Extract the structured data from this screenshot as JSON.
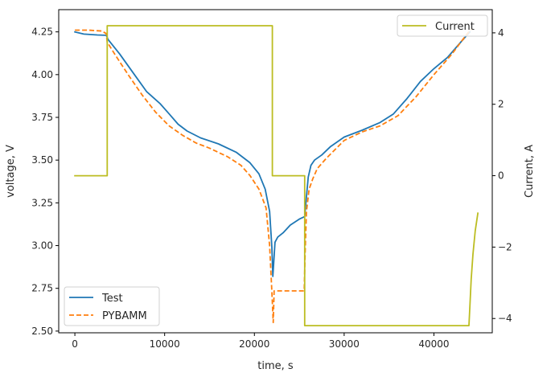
{
  "chart_data": {
    "type": "line",
    "title": "",
    "xlabel": "time, s",
    "ylabel_left": "voltage, V",
    "ylabel_right": "Current, A",
    "xlim": [
      -1800,
      46500
    ],
    "ylim_left": [
      2.49,
      4.38
    ],
    "ylim_right": [
      -4.4,
      4.65
    ],
    "x_ticks": [
      0,
      10000,
      20000,
      30000,
      40000
    ],
    "x_tick_labels": [
      "0",
      "10000",
      "20000",
      "30000",
      "40000"
    ],
    "y_left_ticks": [
      2.5,
      2.75,
      3.0,
      3.25,
      3.5,
      3.75,
      4.0,
      4.25
    ],
    "y_left_tick_labels": [
      "2.50",
      "2.75",
      "3.00",
      "3.25",
      "3.50",
      "3.75",
      "4.00",
      "4.25"
    ],
    "y_right_ticks": [
      -4,
      -2,
      0,
      2,
      4
    ],
    "y_right_tick_labels": [
      "−4",
      "−2",
      "0",
      "2",
      "4"
    ],
    "grid": false,
    "legend_left": {
      "placement": "lower-left",
      "entries": [
        "Test",
        "PYBAMM"
      ]
    },
    "legend_right": {
      "placement": "upper-right",
      "entries": [
        "Current"
      ]
    },
    "series": [
      {
        "name": "Test",
        "axis": "left",
        "color": "#1f77b4",
        "dash": "solid",
        "x": [
          0,
          1000,
          2500,
          3500,
          3700,
          5000,
          6500,
          8000,
          9500,
          10500,
          11500,
          12500,
          14000,
          16000,
          18000,
          19500,
          20500,
          21200,
          21700,
          21950,
          22050,
          22150,
          22300,
          22600,
          23200,
          24000,
          25000,
          25600,
          25700,
          26000,
          26300,
          26700,
          27500,
          28500,
          30000,
          32000,
          34000,
          35500,
          37000,
          38500,
          40000,
          41500,
          43000,
          44000
        ],
        "y": [
          4.25,
          4.237,
          4.232,
          4.23,
          4.205,
          4.12,
          4.01,
          3.9,
          3.83,
          3.77,
          3.71,
          3.67,
          3.63,
          3.595,
          3.545,
          3.485,
          3.42,
          3.33,
          3.2,
          2.99,
          2.82,
          2.9,
          3.02,
          3.05,
          3.075,
          3.12,
          3.155,
          3.17,
          3.23,
          3.4,
          3.47,
          3.5,
          3.53,
          3.58,
          3.635,
          3.675,
          3.72,
          3.77,
          3.86,
          3.96,
          4.035,
          4.1,
          4.19,
          4.25
        ]
      },
      {
        "name": "PYBAMM",
        "axis": "left",
        "color": "#ff7f0e",
        "dash": "dashed",
        "x": [
          0,
          1500,
          3000,
          3500,
          3600,
          4500,
          6000,
          7500,
          9000,
          10500,
          12000,
          13500,
          15000,
          17000,
          18500,
          19500,
          20500,
          21300,
          21700,
          21950,
          22100,
          22200,
          23500,
          25000,
          25550,
          25650,
          25800,
          26100,
          26500,
          27000,
          28000,
          30000,
          32000,
          34000,
          36000,
          38000,
          40000,
          42000,
          43500,
          44200
        ],
        "y": [
          4.26,
          4.26,
          4.255,
          4.24,
          4.19,
          4.115,
          3.995,
          3.88,
          3.78,
          3.7,
          3.645,
          3.6,
          3.57,
          3.52,
          3.47,
          3.41,
          3.33,
          3.22,
          3.0,
          2.73,
          2.55,
          2.735,
          2.735,
          2.735,
          2.735,
          2.95,
          3.2,
          3.33,
          3.39,
          3.45,
          3.51,
          3.615,
          3.665,
          3.7,
          3.76,
          3.87,
          4.0,
          4.12,
          4.225,
          4.27
        ]
      },
      {
        "name": "Current",
        "axis": "right",
        "color": "#bcbd22",
        "dash": "solid",
        "x": [
          0,
          3600,
          3600,
          22000,
          22000,
          25600,
          25600,
          43900,
          44000,
          44150,
          44350,
          44600,
          44900
        ],
        "y": [
          0,
          0,
          4.2,
          4.2,
          0,
          0,
          -4.2,
          -4.2,
          -3.7,
          -2.9,
          -2.2,
          -1.55,
          -1.05
        ]
      }
    ]
  }
}
